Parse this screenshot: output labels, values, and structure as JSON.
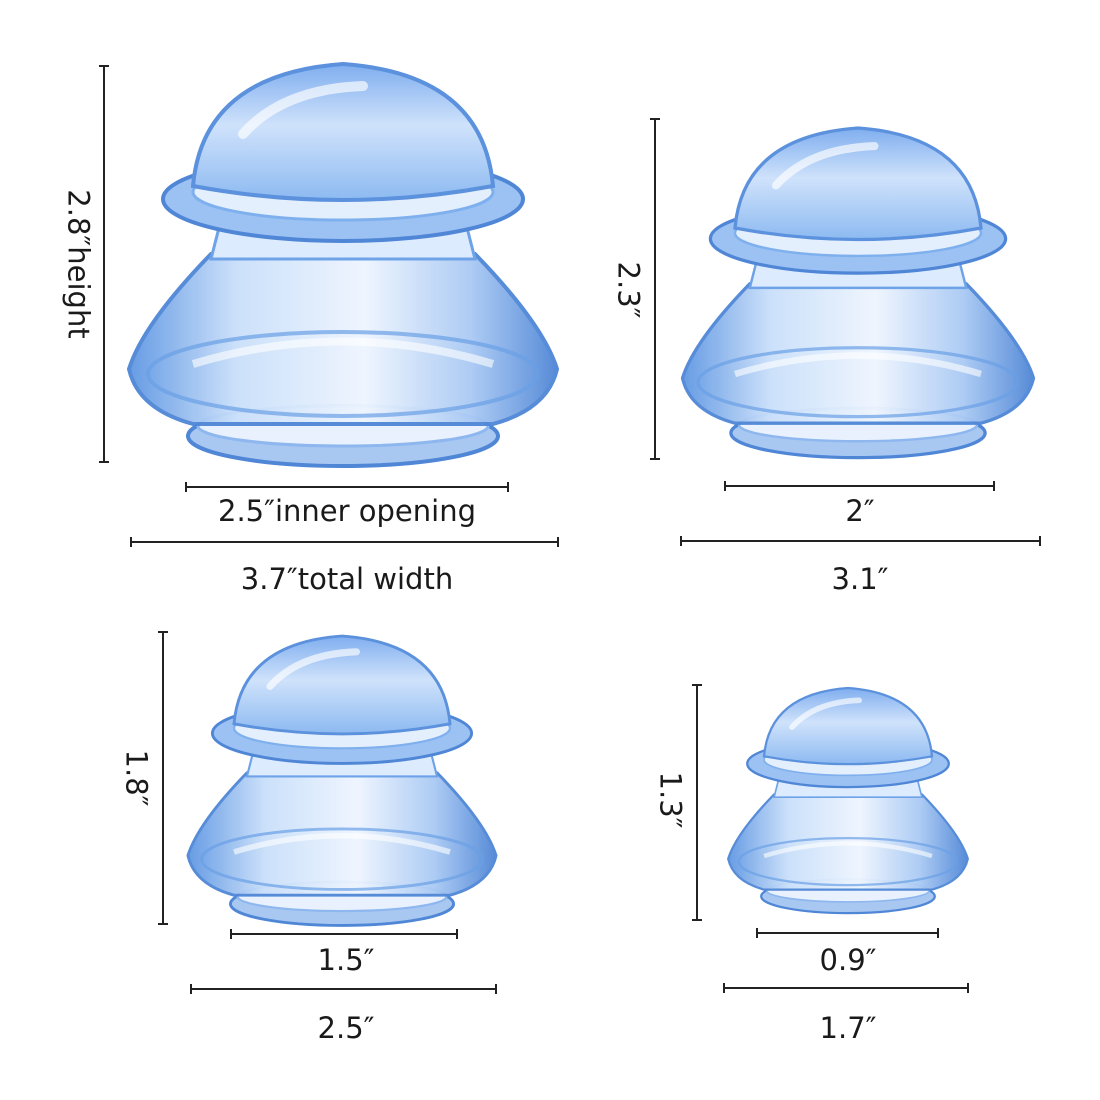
{
  "cups": [
    {
      "size": "large",
      "height": "2.8″height",
      "inner": "2.5″inner opening",
      "total": "3.7″total width"
    },
    {
      "size": "medium",
      "height": "2.3″",
      "inner": "2″",
      "total": "3.1″"
    },
    {
      "size": "small",
      "height": "1.8″",
      "inner": "1.5″",
      "total": "2.5″"
    },
    {
      "size": "x-small",
      "height": "1.3″",
      "inner": "0.9″",
      "total": "1.7″"
    }
  ],
  "colors": {
    "cup": "#7fb0ee",
    "cup_light": "#cfe2fb",
    "cup_dark": "#4f86d6",
    "line": "#222222",
    "text": "#1a1a1a"
  }
}
